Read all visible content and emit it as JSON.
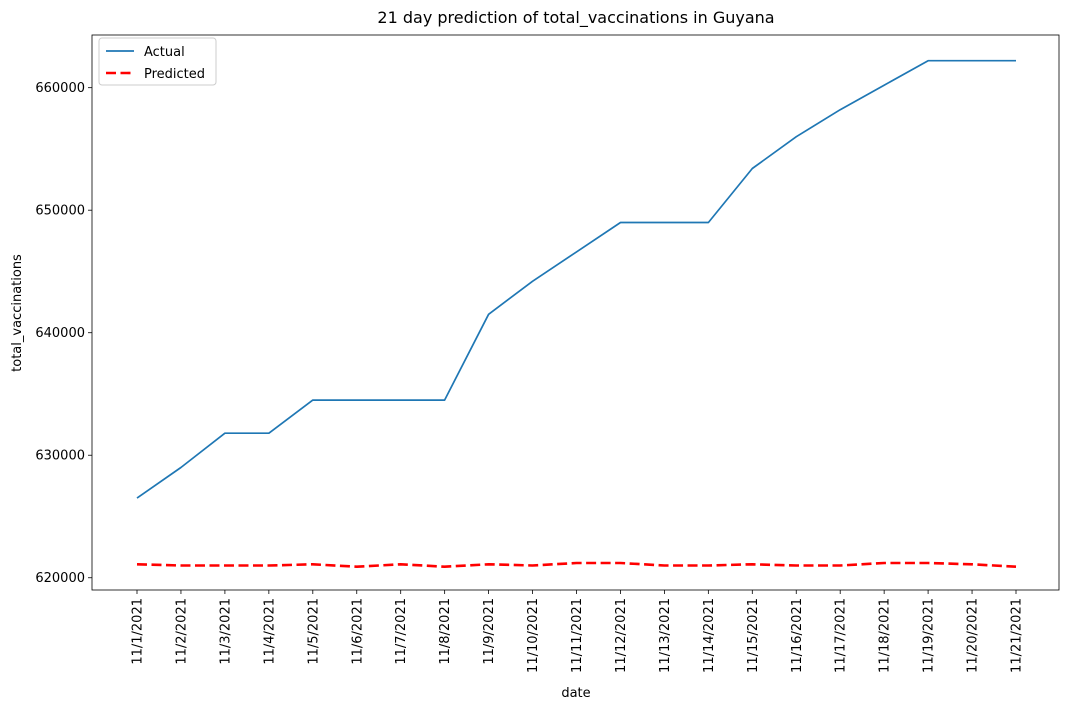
{
  "chart_data": {
    "type": "line",
    "title": "21 day prediction of total_vaccinations in Guyana",
    "xlabel": "date",
    "ylabel": "total_vaccinations",
    "x": [
      "11/1/2021",
      "11/2/2021",
      "11/3/2021",
      "11/4/2021",
      "11/5/2021",
      "11/6/2021",
      "11/7/2021",
      "11/8/2021",
      "11/9/2021",
      "11/10/2021",
      "11/11/2021",
      "11/12/2021",
      "11/13/2021",
      "11/14/2021",
      "11/15/2021",
      "11/16/2021",
      "11/17/2021",
      "11/18/2021",
      "11/19/2021",
      "11/20/2021",
      "11/21/2021"
    ],
    "ylim": [
      619000,
      664300
    ],
    "yticks": [
      620000,
      630000,
      640000,
      650000,
      660000
    ],
    "grid": false,
    "legend_position": "top-left",
    "series": [
      {
        "name": "Actual",
        "color": "#1f77b4",
        "style": "solid",
        "values": [
          626500,
          629000,
          631800,
          631800,
          634500,
          634500,
          634500,
          634500,
          641500,
          644200,
          646600,
          649000,
          649000,
          649000,
          653400,
          656000,
          658200,
          660200,
          662200,
          662200,
          662200
        ]
      },
      {
        "name": "Predicted",
        "color": "#ff0000",
        "style": "dashed",
        "values": [
          621100,
          621000,
          621000,
          621000,
          621100,
          620900,
          621100,
          620900,
          621100,
          621000,
          621200,
          621200,
          621000,
          621000,
          621100,
          621000,
          621000,
          621200,
          621200,
          621100,
          620900
        ]
      }
    ]
  }
}
